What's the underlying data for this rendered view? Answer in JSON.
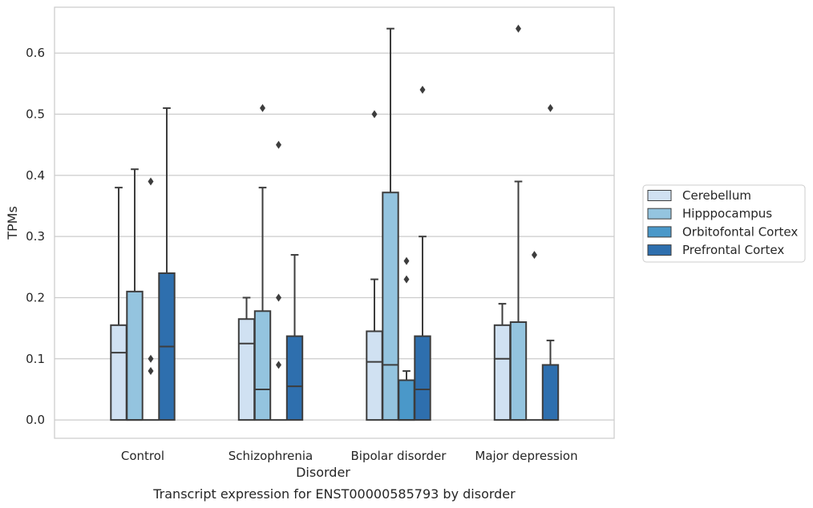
{
  "chart_data": {
    "type": "box",
    "title": "",
    "caption": "Transcript expression for ENST00000585793 by disorder",
    "xlabel": "Disorder",
    "ylabel": "TPMs",
    "ylim": [
      -0.03,
      0.675
    ],
    "yticks": [
      0.0,
      0.1,
      0.2,
      0.3,
      0.4,
      0.5,
      0.6
    ],
    "ytick_labels": [
      "0.0",
      "0.1",
      "0.2",
      "0.3",
      "0.4",
      "0.5",
      "0.6"
    ],
    "grid": "horizontal",
    "legend_position": "right",
    "categories": [
      "Control",
      "Schizophrenia",
      "Bipolar disorder",
      "Major depression"
    ],
    "series": [
      {
        "name": "Cerebellum",
        "color": "#d0e1f2",
        "boxes": [
          {
            "q1": 0.0,
            "median": 0.11,
            "q3": 0.155,
            "whisker_low": 0.0,
            "whisker_high": 0.38,
            "outliers": []
          },
          {
            "q1": 0.0,
            "median": 0.125,
            "q3": 0.165,
            "whisker_low": 0.0,
            "whisker_high": 0.2,
            "outliers": []
          },
          {
            "q1": 0.0,
            "median": 0.095,
            "q3": 0.145,
            "whisker_low": 0.0,
            "whisker_high": 0.23,
            "outliers": [
              0.5
            ]
          },
          {
            "q1": 0.0,
            "median": 0.1,
            "q3": 0.155,
            "whisker_low": 0.0,
            "whisker_high": 0.19,
            "outliers": []
          }
        ]
      },
      {
        "name": "Hipppocampus",
        "color": "#94c4df",
        "boxes": [
          {
            "q1": 0.0,
            "median": 0.0,
            "q3": 0.21,
            "whisker_low": 0.0,
            "whisker_high": 0.41,
            "outliers": []
          },
          {
            "q1": 0.0,
            "median": 0.05,
            "q3": 0.178,
            "whisker_low": 0.0,
            "whisker_high": 0.38,
            "outliers": [
              0.51
            ]
          },
          {
            "q1": 0.0,
            "median": 0.09,
            "q3": 0.372,
            "whisker_low": 0.0,
            "whisker_high": 0.64,
            "outliers": []
          },
          {
            "q1": 0.0,
            "median": 0.0,
            "q3": 0.16,
            "whisker_low": 0.0,
            "whisker_high": 0.39,
            "outliers": [
              0.64
            ]
          }
        ]
      },
      {
        "name": "Orbitofontal Cortex",
        "color": "#4a98c9",
        "boxes": [
          {
            "q1": 0.0,
            "median": 0.0,
            "q3": 0.0,
            "whisker_low": 0.0,
            "whisker_high": 0.0,
            "outliers": [
              0.39,
              0.1,
              0.08
            ]
          },
          {
            "q1": 0.0,
            "median": 0.0,
            "q3": 0.0,
            "whisker_low": 0.0,
            "whisker_high": 0.0,
            "outliers": [
              0.45,
              0.2,
              0.09
            ]
          },
          {
            "q1": 0.0,
            "median": 0.0,
            "q3": 0.065,
            "whisker_low": 0.0,
            "whisker_high": 0.08,
            "outliers": [
              0.26,
              0.23
            ]
          },
          {
            "q1": 0.0,
            "median": 0.0,
            "q3": 0.0,
            "whisker_low": 0.0,
            "whisker_high": 0.0,
            "outliers": [
              0.27
            ]
          }
        ]
      },
      {
        "name": "Prefrontal Cortex",
        "color": "#2e6fae",
        "boxes": [
          {
            "q1": 0.0,
            "median": 0.12,
            "q3": 0.24,
            "whisker_low": 0.0,
            "whisker_high": 0.51,
            "outliers": []
          },
          {
            "q1": 0.0,
            "median": 0.055,
            "q3": 0.137,
            "whisker_low": 0.0,
            "whisker_high": 0.27,
            "outliers": []
          },
          {
            "q1": 0.0,
            "median": 0.05,
            "q3": 0.137,
            "whisker_low": 0.0,
            "whisker_high": 0.3,
            "outliers": [
              0.54
            ]
          },
          {
            "q1": 0.0,
            "median": 0.0,
            "q3": 0.09,
            "whisker_low": 0.0,
            "whisker_high": 0.13,
            "outliers": [
              0.51
            ]
          }
        ]
      }
    ]
  }
}
